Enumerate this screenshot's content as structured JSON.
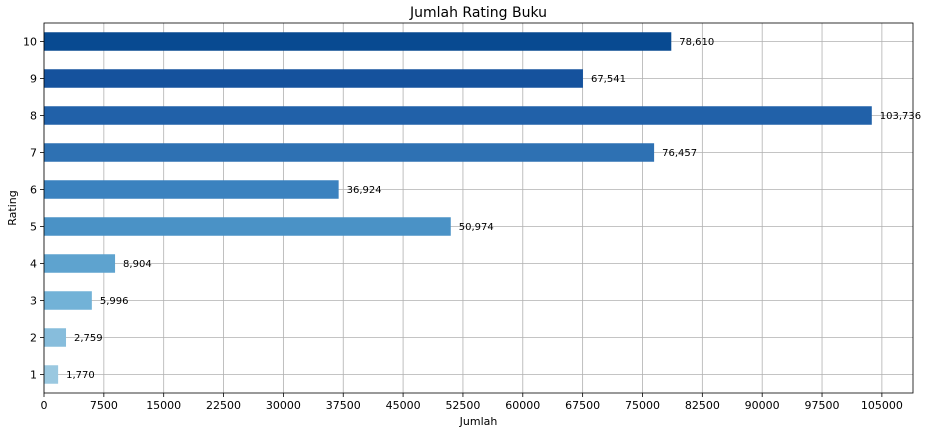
{
  "chart_data": {
    "type": "bar",
    "orientation": "horizontal",
    "title": "Jumlah Rating Buku",
    "xlabel": "Jumlah",
    "ylabel": "Rating",
    "categories": [
      "1",
      "2",
      "3",
      "4",
      "5",
      "6",
      "7",
      "8",
      "9",
      "10"
    ],
    "values": [
      1770,
      2759,
      5996,
      8904,
      50974,
      36924,
      76457,
      103736,
      67541,
      78610
    ],
    "value_labels": [
      "1,770",
      "2,759",
      "5,996",
      "8,904",
      "50,974",
      "36,924",
      "76,457",
      "103,736",
      "67,541",
      "78,610"
    ],
    "xlim": [
      0,
      108900
    ],
    "xticks": [
      0,
      7500,
      15000,
      22500,
      30000,
      37500,
      45000,
      52500,
      60000,
      67500,
      75000,
      82500,
      90000,
      97500,
      105000
    ],
    "xtick_labels": [
      "0",
      "7500",
      "15000",
      "22500",
      "30000",
      "37500",
      "45000",
      "52500",
      "60000",
      "67500",
      "75000",
      "82500",
      "90000",
      "97500",
      "105000"
    ],
    "colors": [
      "#9ac8e0",
      "#87bddc",
      "#72b2d7",
      "#5ea3cf",
      "#4a92c6",
      "#3b82bf",
      "#2e71b3",
      "#2161a9",
      "#15529d",
      "#084a91"
    ],
    "grid": true,
    "legend": "none"
  }
}
